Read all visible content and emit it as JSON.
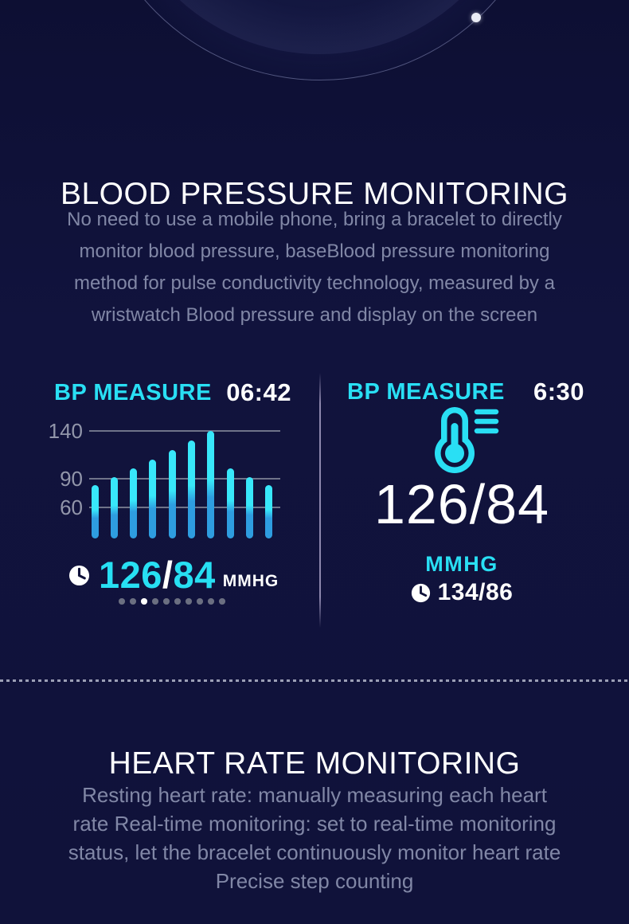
{
  "theme": {
    "background": "#10123A",
    "accent_cyan": "#29DFF4",
    "bar_top": "#38E7FA",
    "bar_bottom": "#2E9DE0",
    "text_white": "#FFFFFF",
    "text_muted": "#8187A6",
    "grid_color": "#6F7389",
    "dot_inactive": "#6B6F81",
    "dot_active": "#FFFFFF"
  },
  "bp_section": {
    "title": "BLOOD PRESSURE MONITORING",
    "description_lines": [
      "No need to use a mobile phone, bring a bracelet to directly",
      "monitor blood pressure, baseBlood pressure monitoring",
      "method for pulse conductivity technology, measured by a",
      "wristwatch Blood pressure and display on the screen"
    ]
  },
  "left_watch": {
    "label": "BP MEASURE",
    "time": "06:42",
    "reading": {
      "systolic": "126",
      "separator": "/",
      "diastolic": "84",
      "unit": "MMHG"
    },
    "clock_icon": "clock-icon",
    "pager": {
      "count": 10,
      "active_index": 2
    }
  },
  "chart_data": {
    "type": "bar",
    "title": "BP MEASURE",
    "values": [
      83,
      92,
      101,
      110,
      120,
      130,
      140,
      101,
      92,
      83
    ],
    "yticks": [
      140,
      90,
      60
    ],
    "ylim": [
      30,
      145
    ],
    "xlabel": "",
    "ylabel": "",
    "grid": true,
    "legend": "none",
    "bar_style": "two-tone cyan/blue rounded capsules"
  },
  "right_watch": {
    "label": "BP MEASURE",
    "time": "6:30",
    "thermometer_icon": "thermometer-icon",
    "reading": "126/84",
    "unit": "MMHG",
    "history": "134/86",
    "clock_icon": "clock-icon"
  },
  "hr_section": {
    "title": "HEART RATE MONITORING",
    "description_lines": [
      "Resting heart rate: manually measuring each heart",
      "rate Real-time monitoring: set to real-time monitoring",
      "status, let the bracelet continuously monitor heart rate",
      "Precise step counting"
    ]
  }
}
